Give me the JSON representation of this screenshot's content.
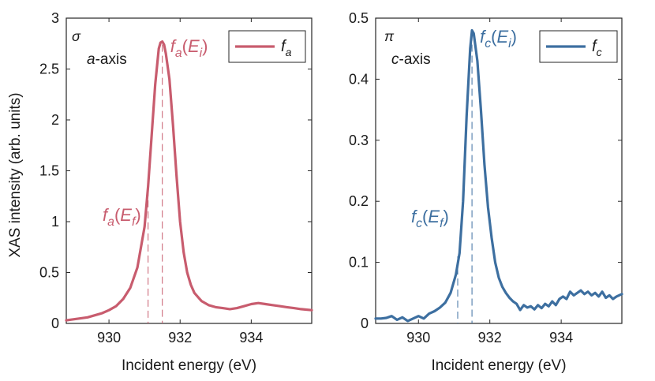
{
  "chart_data": [
    {
      "type": "line",
      "panel_id": "a",
      "color": "#c85c6e",
      "polarization": "σ",
      "axis_note": {
        "italic": "a",
        "rest": "-axis"
      },
      "legend": {
        "base": "f",
        "sub": "a",
        "position": "top-right"
      },
      "xlabel": "Incident energy (eV)",
      "ylabel": "XAS intensity (arb. units)",
      "xlim": [
        928.8,
        935.7
      ],
      "ylim": [
        0,
        3
      ],
      "xticks": [
        930,
        932,
        934
      ],
      "xtick_labels": [
        "930",
        "932",
        "934"
      ],
      "yticks": [
        0,
        0.5,
        1,
        1.5,
        2,
        2.5,
        3
      ],
      "ytick_labels": [
        "0",
        "0.5",
        "1",
        "1.5",
        "2",
        "2.5",
        "3"
      ],
      "x": [
        928.8,
        929.0,
        929.2,
        929.4,
        929.6,
        929.8,
        930.0,
        930.2,
        930.4,
        930.6,
        930.8,
        931.0,
        931.1,
        931.2,
        931.3,
        931.4,
        931.45,
        931.5,
        931.55,
        931.6,
        931.7,
        931.8,
        931.9,
        932.0,
        932.1,
        932.2,
        932.3,
        932.4,
        932.6,
        932.8,
        933.0,
        933.2,
        933.4,
        933.6,
        933.8,
        934.0,
        934.2,
        934.4,
        934.6,
        934.8,
        935.0,
        935.2,
        935.4,
        935.7
      ],
      "y": [
        0.03,
        0.04,
        0.05,
        0.06,
        0.08,
        0.1,
        0.13,
        0.17,
        0.24,
        0.35,
        0.55,
        0.95,
        1.35,
        1.85,
        2.35,
        2.7,
        2.76,
        2.77,
        2.74,
        2.65,
        2.4,
        1.95,
        1.45,
        1.0,
        0.7,
        0.5,
        0.38,
        0.3,
        0.22,
        0.18,
        0.16,
        0.15,
        0.14,
        0.15,
        0.17,
        0.19,
        0.2,
        0.19,
        0.18,
        0.17,
        0.16,
        0.15,
        0.14,
        0.13
      ],
      "annotations": [
        {
          "id": "peak",
          "base": "f",
          "sub": "a",
          "arg": "E",
          "arg_sub": "i",
          "x": 931.5
        },
        {
          "id": "edge",
          "base": "f",
          "sub": "a",
          "arg": "E",
          "arg_sub": "f",
          "x": 931.1
        }
      ]
    },
    {
      "type": "line",
      "panel_id": "c",
      "color": "#3d6fa0",
      "polarization": "π",
      "axis_note": {
        "italic": "c",
        "rest": "-axis"
      },
      "legend": {
        "base": "f",
        "sub": "c",
        "position": "top-right"
      },
      "xlabel": "Incident energy (eV)",
      "ylabel": "",
      "xlim": [
        928.8,
        935.7
      ],
      "ylim": [
        0,
        0.5
      ],
      "xticks": [
        930,
        932,
        934
      ],
      "xtick_labels": [
        "930",
        "932",
        "934"
      ],
      "yticks": [
        0,
        0.1,
        0.2,
        0.3,
        0.4,
        0.5
      ],
      "ytick_labels": [
        "0",
        "0.1",
        "0.2",
        "0.3",
        "0.4",
        "0.5"
      ],
      "x": [
        928.8,
        928.95,
        929.1,
        929.25,
        929.4,
        929.55,
        929.7,
        929.85,
        930.0,
        930.15,
        930.3,
        930.45,
        930.6,
        930.75,
        930.9,
        931.05,
        931.15,
        931.25,
        931.35,
        931.45,
        931.5,
        931.55,
        931.65,
        931.75,
        931.85,
        931.95,
        932.05,
        932.15,
        932.25,
        932.35,
        932.45,
        932.55,
        932.65,
        932.75,
        932.85,
        932.95,
        933.05,
        933.15,
        933.25,
        933.35,
        933.45,
        933.55,
        933.65,
        933.75,
        933.85,
        933.95,
        934.05,
        934.15,
        934.25,
        934.35,
        934.45,
        934.55,
        934.65,
        934.75,
        934.85,
        934.95,
        935.05,
        935.15,
        935.25,
        935.35,
        935.45,
        935.55,
        935.7
      ],
      "y": [
        0.008,
        0.008,
        0.009,
        0.012,
        0.006,
        0.01,
        0.004,
        0.008,
        0.012,
        0.008,
        0.016,
        0.02,
        0.026,
        0.034,
        0.05,
        0.08,
        0.115,
        0.2,
        0.34,
        0.45,
        0.48,
        0.475,
        0.43,
        0.35,
        0.26,
        0.19,
        0.14,
        0.1,
        0.075,
        0.06,
        0.05,
        0.042,
        0.036,
        0.032,
        0.022,
        0.03,
        0.026,
        0.028,
        0.023,
        0.03,
        0.025,
        0.032,
        0.028,
        0.036,
        0.03,
        0.04,
        0.044,
        0.04,
        0.052,
        0.046,
        0.05,
        0.054,
        0.048,
        0.052,
        0.046,
        0.05,
        0.044,
        0.052,
        0.042,
        0.046,
        0.04,
        0.044,
        0.048
      ],
      "annotations": [
        {
          "id": "peak",
          "base": "f",
          "sub": "c",
          "arg": "E",
          "arg_sub": "i",
          "x": 931.5
        },
        {
          "id": "edge",
          "base": "f",
          "sub": "c",
          "arg": "E",
          "arg_sub": "f",
          "x": 931.1
        }
      ]
    }
  ]
}
